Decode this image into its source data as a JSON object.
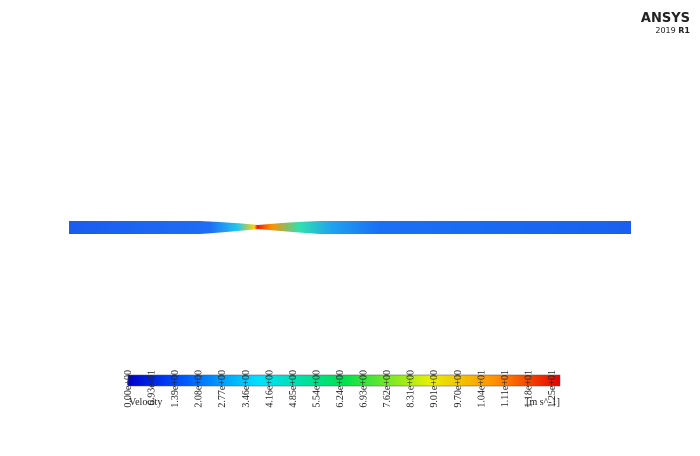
{
  "logo": {
    "name": "ANSYS",
    "version": "2019",
    "release": "R1"
  },
  "legend": {
    "ticks": [
      "0.00e+00",
      "6.93e-01",
      "1.39e+00",
      "2.08e+00",
      "2.77e+00",
      "3.46e+00",
      "4.16e+00",
      "4.85e+00",
      "5.54e+00",
      "6.24e+00",
      "6.93e+00",
      "7.62e+00",
      "8.31e+00",
      "9.01e+00",
      "9.70e+00",
      "1.04e+01",
      "1.11e+01",
      "1.18e+01",
      "1.25e+01"
    ],
    "title": "Velocity",
    "units": "[m s^-1]"
  }
}
